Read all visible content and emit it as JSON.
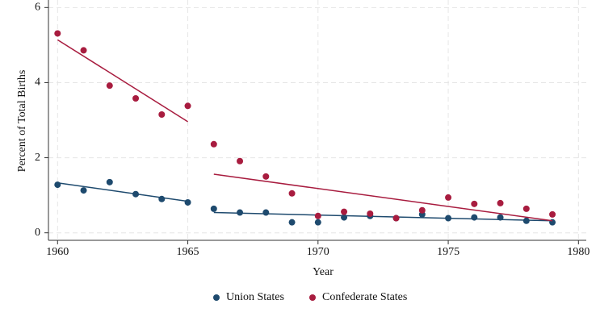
{
  "chart_data": {
    "type": "scatter",
    "x_label": "Year",
    "y_label": "Percent of Total Births",
    "xlim": [
      1959.65,
      1980.3
    ],
    "xticks": [
      1960,
      1965,
      1970,
      1975,
      1980
    ],
    "ylim": [
      -0.2,
      6.2
    ],
    "yticks": [
      0,
      2,
      4,
      6
    ],
    "grid": true,
    "legend": "bottom",
    "series": [
      {
        "name": "Union States",
        "color": "#1e4a6e",
        "x": [
          1960,
          1961,
          1962,
          1963,
          1964,
          1965,
          1966,
          1967,
          1968,
          1969,
          1970,
          1971,
          1972,
          1973,
          1974,
          1975,
          1976,
          1977,
          1978,
          1979
        ],
        "values": [
          1.28,
          1.13,
          1.35,
          1.03,
          0.9,
          0.81,
          0.64,
          0.54,
          0.54,
          0.28,
          0.28,
          0.41,
          0.45,
          0.39,
          0.49,
          0.39,
          0.41,
          0.41,
          0.32,
          0.28
        ],
        "fits": [
          {
            "x": [
              1960,
              1965
            ],
            "values": [
              1.33,
              0.84
            ]
          },
          {
            "x": [
              1966,
              1979
            ],
            "values": [
              0.54,
              0.32
            ]
          }
        ]
      },
      {
        "name": "Confederate States",
        "color": "#a81c3f",
        "x": [
          1960,
          1961,
          1962,
          1963,
          1964,
          1965,
          1966,
          1967,
          1968,
          1969,
          1970,
          1971,
          1972,
          1973,
          1974,
          1975,
          1976,
          1977,
          1978,
          1979
        ],
        "values": [
          5.31,
          4.86,
          3.92,
          3.58,
          3.15,
          3.38,
          2.36,
          1.91,
          1.5,
          1.05,
          0.45,
          0.56,
          0.51,
          0.39,
          0.6,
          0.94,
          0.77,
          0.79,
          0.64,
          0.49
        ],
        "fits": [
          {
            "x": [
              1960,
              1965
            ],
            "values": [
              5.14,
              2.96
            ]
          },
          {
            "x": [
              1966,
              1979
            ],
            "values": [
              1.56,
              0.32
            ]
          }
        ]
      }
    ]
  }
}
